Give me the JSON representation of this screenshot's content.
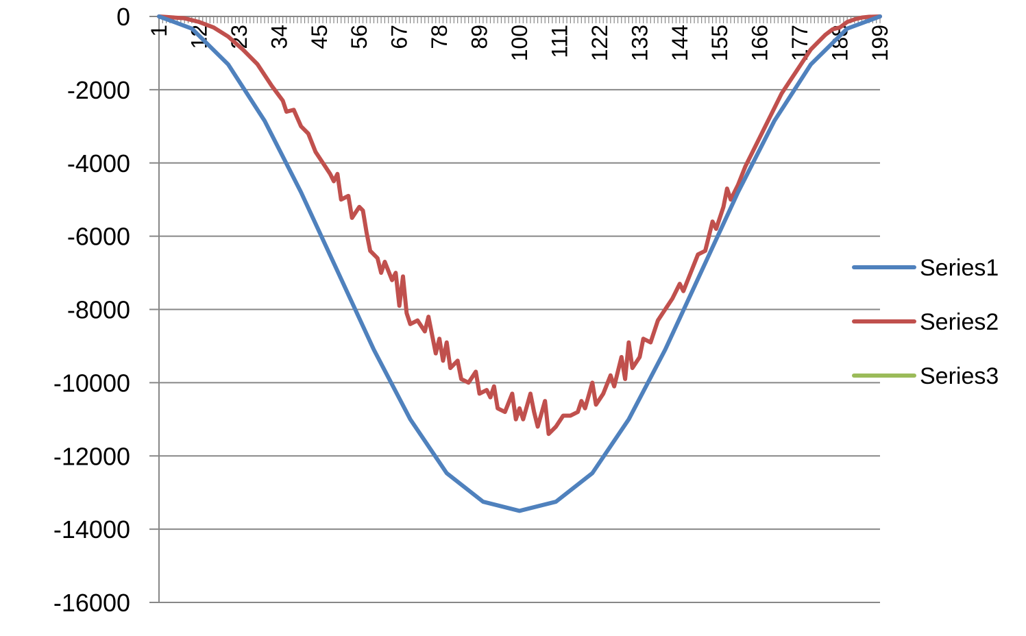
{
  "chart_data": {
    "type": "line",
    "title": "",
    "xlabel": "",
    "ylabel": "",
    "x_range": [
      1,
      199
    ],
    "ylim": [
      -16000,
      0
    ],
    "y_ticks": [
      0,
      -2000,
      -4000,
      -6000,
      -8000,
      -10000,
      -12000,
      -14000,
      -16000
    ],
    "x_ticks": [
      1,
      12,
      23,
      34,
      45,
      56,
      67,
      78,
      89,
      100,
      111,
      122,
      133,
      144,
      155,
      166,
      177,
      188,
      199
    ],
    "x_axis_position": "top",
    "grid": {
      "horizontal": true,
      "vertical": false
    },
    "legend_position": "right",
    "series": [
      {
        "name": "Series1",
        "color": "#4F81BD",
        "points": [
          [
            1,
            0
          ],
          [
            10,
            -330
          ],
          [
            20,
            -1310
          ],
          [
            30,
            -2850
          ],
          [
            40,
            -4800
          ],
          [
            50,
            -6950
          ],
          [
            60,
            -9100
          ],
          [
            70,
            -11000
          ],
          [
            80,
            -12470
          ],
          [
            90,
            -13250
          ],
          [
            100,
            -13500
          ],
          [
            110,
            -13250
          ],
          [
            120,
            -12470
          ],
          [
            130,
            -11000
          ],
          [
            140,
            -9100
          ],
          [
            150,
            -6950
          ],
          [
            160,
            -4800
          ],
          [
            170,
            -2850
          ],
          [
            180,
            -1310
          ],
          [
            190,
            -330
          ],
          [
            199,
            0
          ]
        ]
      },
      {
        "name": "Series2",
        "color": "#C0504D",
        "points": [
          [
            1,
            0
          ],
          [
            8,
            -50
          ],
          [
            12,
            -150
          ],
          [
            16,
            -300
          ],
          [
            20,
            -550
          ],
          [
            24,
            -900
          ],
          [
            28,
            -1300
          ],
          [
            32,
            -1900
          ],
          [
            35,
            -2300
          ],
          [
            36,
            -2600
          ],
          [
            38,
            -2550
          ],
          [
            40,
            -3000
          ],
          [
            42,
            -3200
          ],
          [
            44,
            -3700
          ],
          [
            46,
            -4000
          ],
          [
            48,
            -4300
          ],
          [
            49,
            -4500
          ],
          [
            50,
            -4300
          ],
          [
            51,
            -5000
          ],
          [
            53,
            -4900
          ],
          [
            54,
            -5500
          ],
          [
            56,
            -5200
          ],
          [
            57,
            -5300
          ],
          [
            58,
            -5900
          ],
          [
            59,
            -6400
          ],
          [
            61,
            -6600
          ],
          [
            62,
            -7000
          ],
          [
            63,
            -6700
          ],
          [
            65,
            -7200
          ],
          [
            66,
            -7000
          ],
          [
            67,
            -7900
          ],
          [
            68,
            -7100
          ],
          [
            69,
            -8100
          ],
          [
            70,
            -8400
          ],
          [
            72,
            -8300
          ],
          [
            74,
            -8600
          ],
          [
            75,
            -8200
          ],
          [
            77,
            -9200
          ],
          [
            78,
            -8800
          ],
          [
            79,
            -9400
          ],
          [
            80,
            -8900
          ],
          [
            81,
            -9600
          ],
          [
            83,
            -9400
          ],
          [
            84,
            -9900
          ],
          [
            86,
            -10000
          ],
          [
            88,
            -9700
          ],
          [
            89,
            -10300
          ],
          [
            91,
            -10200
          ],
          [
            92,
            -10400
          ],
          [
            93,
            -10100
          ],
          [
            94,
            -10700
          ],
          [
            96,
            -10800
          ],
          [
            98,
            -10300
          ],
          [
            99,
            -11000
          ],
          [
            100,
            -10700
          ],
          [
            101,
            -11000
          ],
          [
            103,
            -10300
          ],
          [
            104,
            -10800
          ],
          [
            105,
            -11200
          ],
          [
            107,
            -10500
          ],
          [
            108,
            -11400
          ],
          [
            110,
            -11200
          ],
          [
            112,
            -10900
          ],
          [
            114,
            -10900
          ],
          [
            116,
            -10800
          ],
          [
            117,
            -10500
          ],
          [
            118,
            -10700
          ],
          [
            120,
            -10000
          ],
          [
            121,
            -10600
          ],
          [
            123,
            -10300
          ],
          [
            125,
            -9800
          ],
          [
            126,
            -10100
          ],
          [
            128,
            -9300
          ],
          [
            129,
            -9900
          ],
          [
            130,
            -8900
          ],
          [
            131,
            -9600
          ],
          [
            133,
            -9300
          ],
          [
            134,
            -8800
          ],
          [
            136,
            -8900
          ],
          [
            138,
            -8300
          ],
          [
            140,
            -8000
          ],
          [
            142,
            -7700
          ],
          [
            144,
            -7300
          ],
          [
            145,
            -7500
          ],
          [
            147,
            -7000
          ],
          [
            149,
            -6500
          ],
          [
            151,
            -6400
          ],
          [
            153,
            -5600
          ],
          [
            154,
            -5800
          ],
          [
            156,
            -5200
          ],
          [
            157,
            -4700
          ],
          [
            158,
            -5000
          ],
          [
            160,
            -4600
          ],
          [
            162,
            -4100
          ],
          [
            164,
            -3700
          ],
          [
            166,
            -3300
          ],
          [
            168,
            -2900
          ],
          [
            170,
            -2500
          ],
          [
            172,
            -2100
          ],
          [
            174,
            -1800
          ],
          [
            176,
            -1500
          ],
          [
            178,
            -1200
          ],
          [
            180,
            -900
          ],
          [
            182,
            -700
          ],
          [
            184,
            -500
          ],
          [
            186,
            -350
          ],
          [
            188,
            -300
          ],
          [
            190,
            -150
          ],
          [
            192,
            -80
          ],
          [
            194,
            -30
          ],
          [
            196,
            -10
          ],
          [
            199,
            0
          ]
        ]
      },
      {
        "name": "Series3",
        "color": "#9BBB59",
        "points": []
      }
    ]
  }
}
